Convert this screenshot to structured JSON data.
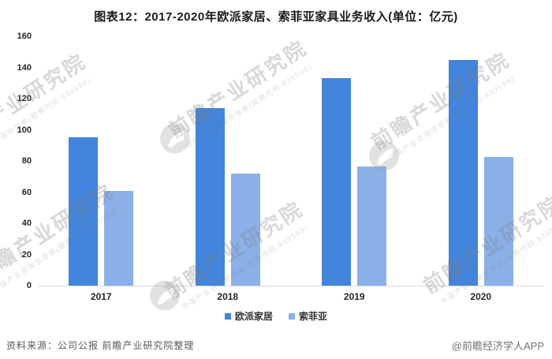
{
  "title": "图表12：2017-2020年欧派家居、索菲亚家具业务收入(单位：亿元)",
  "chart_data": {
    "type": "bar",
    "categories": [
      "2017",
      "2018",
      "2019",
      "2020"
    ],
    "series": [
      {
        "name": "欧派家居",
        "color": "#4384DC",
        "values": [
          95,
          114,
          133,
          145
        ]
      },
      {
        "name": "索菲亚",
        "color": "#8BB0E8",
        "values": [
          61,
          72,
          76.5,
          82.5
        ]
      }
    ],
    "title": "图表12：2017-2020年欧派家居、索菲亚家具业务收入(单位：亿元)",
    "xlabel": "",
    "ylabel": "",
    "ylim": [
      0,
      160
    ],
    "yticks": [
      0,
      20,
      40,
      60,
      80,
      100,
      120,
      140,
      160
    ],
    "grid": false,
    "legend_position": "bottom"
  },
  "colors": {
    "series1": "#4384DC",
    "series2": "#8BB0E8",
    "baseline": "#D9D9D9"
  },
  "footer": {
    "source": "资料来源：公司公报 前瞻产业研究院整理",
    "credit": "@前瞻经济学人APP"
  },
  "watermark": {
    "text": "前瞻产业研究院",
    "subtext": "中国产业咨询领导者(股票代码:839599)"
  }
}
